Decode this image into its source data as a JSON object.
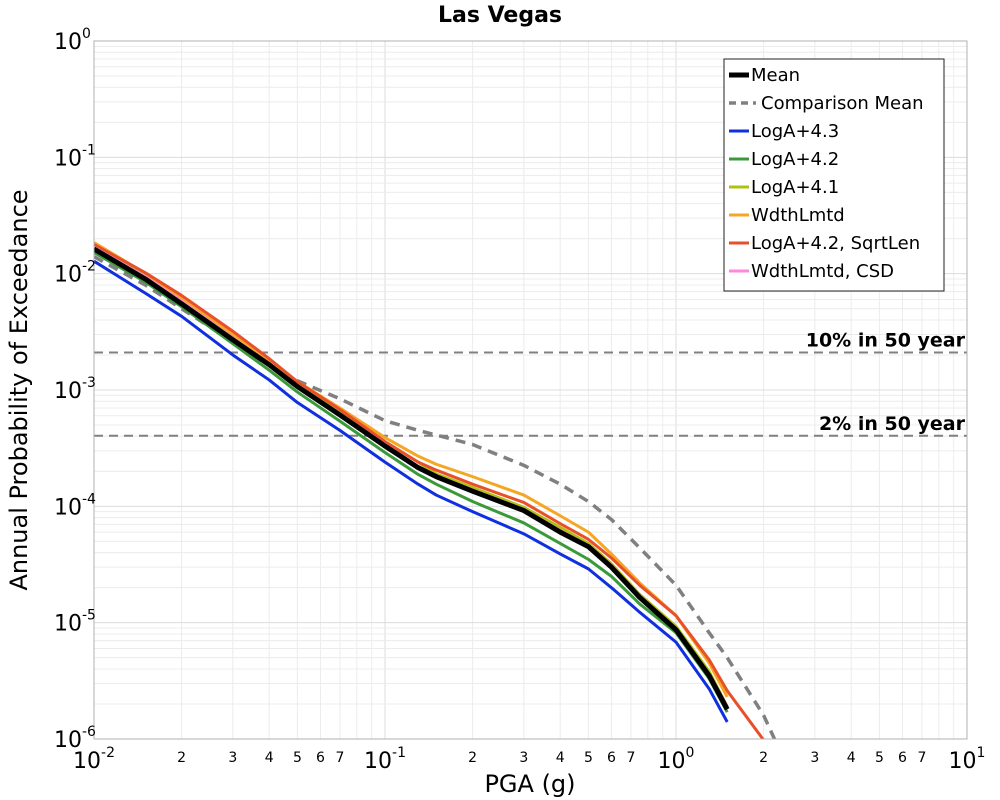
{
  "chart_data": {
    "type": "line",
    "title": "Las Vegas",
    "xlabel": "PGA (g)",
    "ylabel": "Annual Probability of Exceedance",
    "x_scale": "log",
    "y_scale": "log",
    "xlim": [
      0.01,
      10
    ],
    "ylim": [
      1e-06,
      1
    ],
    "grid": true,
    "legend_position": "top-right",
    "x_major_ticks": [
      {
        "base": "10",
        "exp": "-2",
        "value": 0.01
      },
      {
        "base": "10",
        "exp": "-1",
        "value": 0.1
      },
      {
        "base": "10",
        "exp": "0",
        "value": 1
      },
      {
        "base": "10",
        "exp": "1",
        "value": 10
      }
    ],
    "x_minor_tick_labels": [
      "2",
      "3",
      "4",
      "5",
      "6",
      "7"
    ],
    "y_major_ticks": [
      {
        "base": "10",
        "exp": "0",
        "value": 1
      },
      {
        "base": "10",
        "exp": "-1",
        "value": 0.1
      },
      {
        "base": "10",
        "exp": "-2",
        "value": 0.01
      },
      {
        "base": "10",
        "exp": "-3",
        "value": 0.001
      },
      {
        "base": "10",
        "exp": "-4",
        "value": 0.0001
      },
      {
        "base": "10",
        "exp": "-5",
        "value": 1e-05
      },
      {
        "base": "10",
        "exp": "-6",
        "value": 1e-06
      }
    ],
    "reference_lines": [
      {
        "label": "10% in 50 year",
        "y": 0.0021,
        "color": "#808080"
      },
      {
        "label": "2% in 50 year",
        "y": 0.000404,
        "color": "#808080"
      }
    ],
    "x": [
      0.01,
      0.015,
      0.02,
      0.03,
      0.04,
      0.05,
      0.07,
      0.1,
      0.13,
      0.15,
      0.2,
      0.3,
      0.4,
      0.5,
      0.6,
      0.75,
      1.0,
      1.3,
      1.5,
      2.0,
      2.2
    ],
    "series": [
      {
        "name": "Mean",
        "color": "#000000",
        "width": 5,
        "dash": "",
        "values": [
          0.0163,
          0.009,
          0.0055,
          0.0027,
          0.00165,
          0.00107,
          0.00061,
          0.00033,
          0.000215,
          0.00018,
          0.000135,
          9.2e-05,
          6e-05,
          4.5e-05,
          3e-05,
          1.65e-05,
          8.7e-06,
          3.5e-06,
          1.8e-06,
          null,
          null
        ]
      },
      {
        "name": "Comparison Mean",
        "color": "#808080",
        "width": 3.5,
        "dash": "10,7",
        "values": [
          0.014,
          0.008,
          0.005,
          0.0026,
          0.00162,
          0.0012,
          0.00084,
          0.000545,
          0.00045,
          0.00041,
          0.00034,
          0.000225,
          0.000155,
          0.00011,
          7.7e-05,
          4.4e-05,
          2.1e-05,
          8.2e-06,
          5e-06,
          1.6e-06,
          9.5e-07
        ]
      },
      {
        "name": "LogA+4.3",
        "color": "#1030e0",
        "width": 3,
        "dash": "",
        "values": [
          0.0128,
          0.0068,
          0.0043,
          0.002,
          0.00122,
          0.00078,
          0.00045,
          0.00024,
          0.000155,
          0.000125,
          9e-05,
          5.8e-05,
          3.9e-05,
          2.9e-05,
          2e-05,
          1.23e-05,
          6.8e-06,
          2.7e-06,
          1.4e-06,
          null,
          null
        ]
      },
      {
        "name": "LogA+4.2",
        "color": "#3a9a3a",
        "width": 3,
        "dash": "",
        "values": [
          0.0152,
          0.0085,
          0.0052,
          0.0025,
          0.00148,
          0.00096,
          0.00054,
          0.00029,
          0.000188,
          0.000155,
          0.00011,
          7.2e-05,
          4.8e-05,
          3.5e-05,
          2.5e-05,
          1.45e-05,
          8.2e-06,
          3.3e-06,
          1.7e-06,
          null,
          null
        ]
      },
      {
        "name": "LogA+4.1",
        "color": "#b0c010",
        "width": 3,
        "dash": "",
        "values": [
          0.018,
          0.01,
          0.0062,
          0.003,
          0.00178,
          0.00115,
          0.00066,
          0.00036,
          0.00024,
          0.00019,
          0.000145,
          9.8e-05,
          6.6e-05,
          4.8e-05,
          3.2e-05,
          1.75e-05,
          9.3e-06,
          3.8e-06,
          1.9e-06,
          null,
          null
        ]
      },
      {
        "name": "WdthLmtd",
        "color": "#f5a623",
        "width": 3,
        "dash": "",
        "values": [
          0.0185,
          0.0101,
          0.0062,
          0.003,
          0.00177,
          0.00118,
          0.0007,
          0.00039,
          0.00027,
          0.00023,
          0.00018,
          0.000125,
          8.3e-05,
          6e-05,
          3.9e-05,
          2.2e-05,
          1.15e-05,
          4.5e-06,
          2.3e-06,
          null,
          null
        ]
      },
      {
        "name": "LogA+4.2, SqrtLen",
        "color": "#e8502a",
        "width": 3,
        "dash": "",
        "values": [
          0.0178,
          0.0102,
          0.0065,
          0.0032,
          0.00186,
          0.00118,
          0.00068,
          0.00036,
          0.00024,
          0.000205,
          0.000155,
          0.000108,
          7.1e-05,
          5.2e-05,
          3.6e-05,
          2.1e-05,
          1.15e-05,
          4.8e-06,
          2.6e-06,
          9.8e-07,
          null
        ]
      },
      {
        "name": "WdthLmtd, CSD",
        "color": "#ff88dd",
        "width": 3,
        "dash": "",
        "values": [
          0.0168,
          0.0094,
          0.0058,
          0.0028,
          0.00168,
          0.00109,
          0.00062,
          0.00034,
          0.00022,
          0.000182,
          0.000138,
          9.4e-05,
          6.2e-05,
          4.6e-05,
          3.1e-05,
          1.68e-05,
          8.9e-06,
          3.6e-06,
          1.9e-06,
          null,
          null
        ]
      }
    ]
  }
}
